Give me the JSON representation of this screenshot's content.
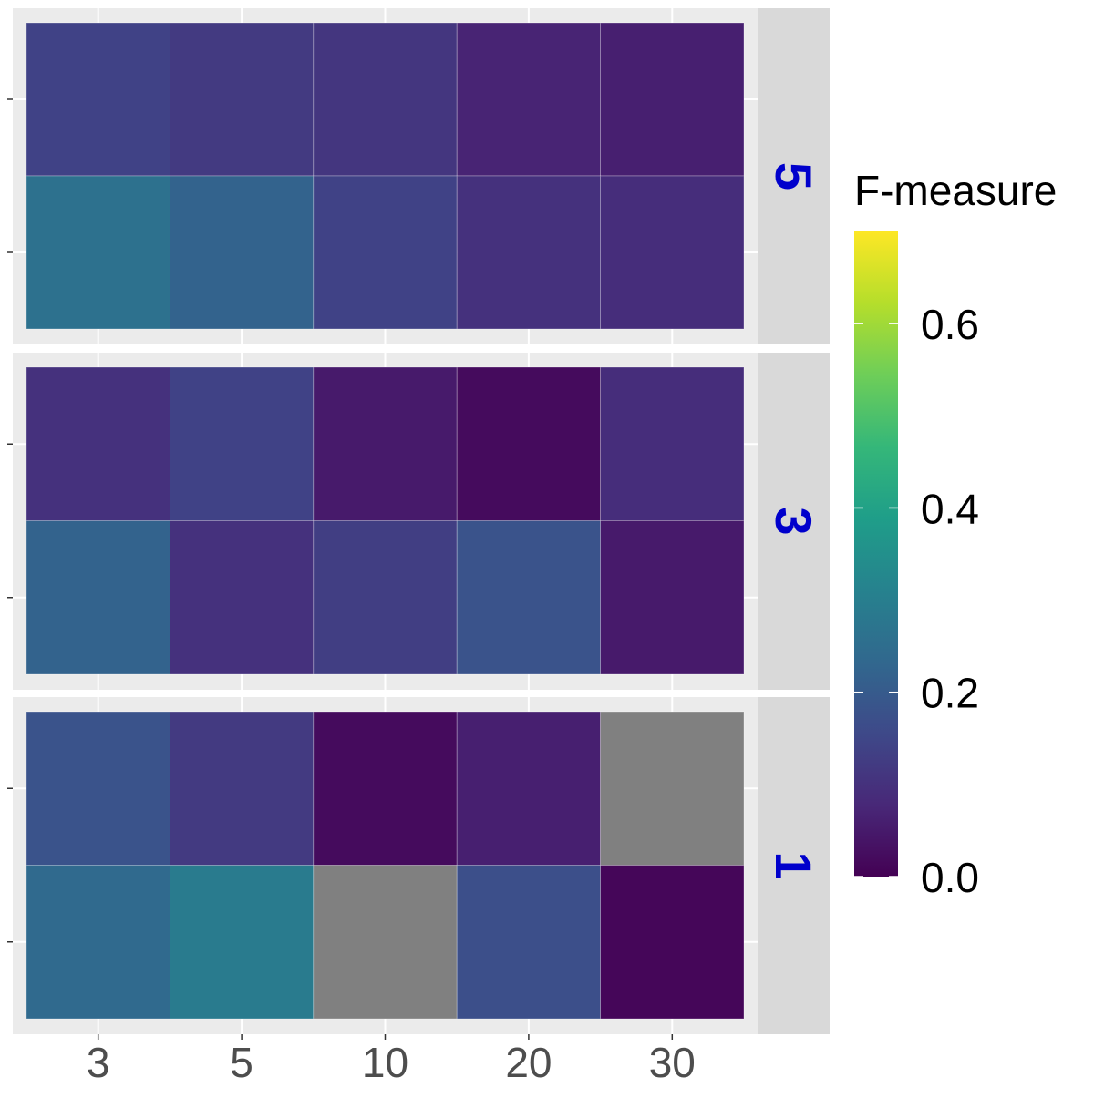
{
  "chart_data": {
    "type": "heatmap",
    "x": [
      "3",
      "5",
      "10",
      "20",
      "30"
    ],
    "y_tick_labels": [
      "",
      ""
    ],
    "facets": [
      {
        "label": "5",
        "rows": [
          [
            0.14,
            0.12,
            0.11,
            0.07,
            0.06
          ],
          [
            0.26,
            0.22,
            0.14,
            0.1,
            0.09
          ]
        ]
      },
      {
        "label": "3",
        "rows": [
          [
            0.1,
            0.14,
            0.05,
            0.02,
            0.09
          ],
          [
            0.22,
            0.1,
            0.13,
            0.18,
            0.05
          ]
        ]
      },
      {
        "label": "1",
        "rows": [
          [
            0.18,
            0.12,
            0.02,
            0.06,
            null
          ],
          [
            0.24,
            0.29,
            null,
            0.17,
            0.01
          ]
        ]
      }
    ],
    "legend": {
      "title": "F-measure",
      "ticks": [
        "0.0",
        "0.2",
        "0.4",
        "0.6"
      ],
      "tick_values": [
        0.0,
        0.2,
        0.4,
        0.6
      ],
      "min": 0.0,
      "max": 0.7
    },
    "colors": {
      "palette": "viridis",
      "na": "#808080",
      "panel_background": "#ebebeb",
      "strip_background": "#d9d9d9",
      "strip_text": "#0000cc",
      "tick_text": "#4d4d4d"
    }
  }
}
